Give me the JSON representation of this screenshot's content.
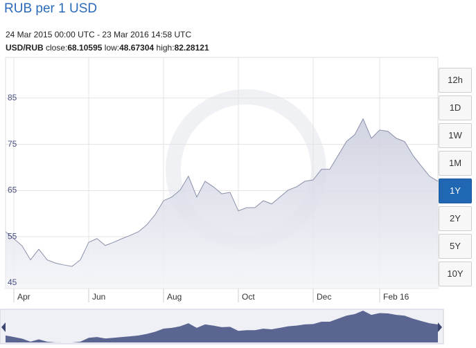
{
  "chart_data": {
    "type": "area",
    "title": "RUB per 1 USD",
    "subtitle": "24 Mar 2015 00:00 UTC - 23 Mar 2016 14:58 UTC",
    "pair": "USD/RUB",
    "stats": [
      {
        "label": "close:",
        "value": 68.10595
      },
      {
        "label": "low:",
        "value": 48.67304
      },
      {
        "label": "high:",
        "value": 82.28121
      }
    ],
    "categories": [
      null,
      "Apr",
      null,
      null,
      null,
      null,
      null,
      null,
      null,
      null,
      "Jun",
      null,
      null,
      null,
      null,
      null,
      null,
      null,
      null,
      "Aug",
      null,
      null,
      null,
      null,
      null,
      null,
      null,
      null,
      "Oct",
      null,
      null,
      null,
      null,
      null,
      null,
      null,
      null,
      "Dec",
      null,
      null,
      null,
      null,
      null,
      null,
      null,
      "Feb 16",
      null,
      null,
      null,
      null,
      null,
      null,
      null
    ],
    "series": [
      {
        "name": "USD/RUB",
        "color": "#8a90aa",
        "values": [
          56.1,
          54.6,
          53,
          50,
          52.3,
          50,
          49.3,
          48.9,
          48.6,
          50,
          53.8,
          54.6,
          53.1,
          53.8,
          54.6,
          55.3,
          56.1,
          57.6,
          59.8,
          62.8,
          63.6,
          65.1,
          68.1,
          63.6,
          67,
          65.8,
          64.3,
          64.6,
          60.6,
          61.3,
          61.3,
          62.8,
          62.1,
          63.6,
          65.1,
          65.8,
          67,
          67.3,
          69.6,
          69.6,
          72.6,
          75.6,
          77.1,
          80.5,
          76.3,
          78.1,
          77.8,
          76.3,
          75.6,
          72.6,
          70.3,
          68.1,
          67
        ]
      }
    ],
    "ylim": [
      43.8,
      93.8
    ],
    "yticks": [
      45,
      55,
      65,
      75,
      85
    ],
    "grid": true,
    "range_buttons": [
      "12h",
      "1D",
      "1W",
      "1M",
      "1Y",
      "2Y",
      "5Y",
      "10Y"
    ],
    "selected_range": "1Y"
  }
}
